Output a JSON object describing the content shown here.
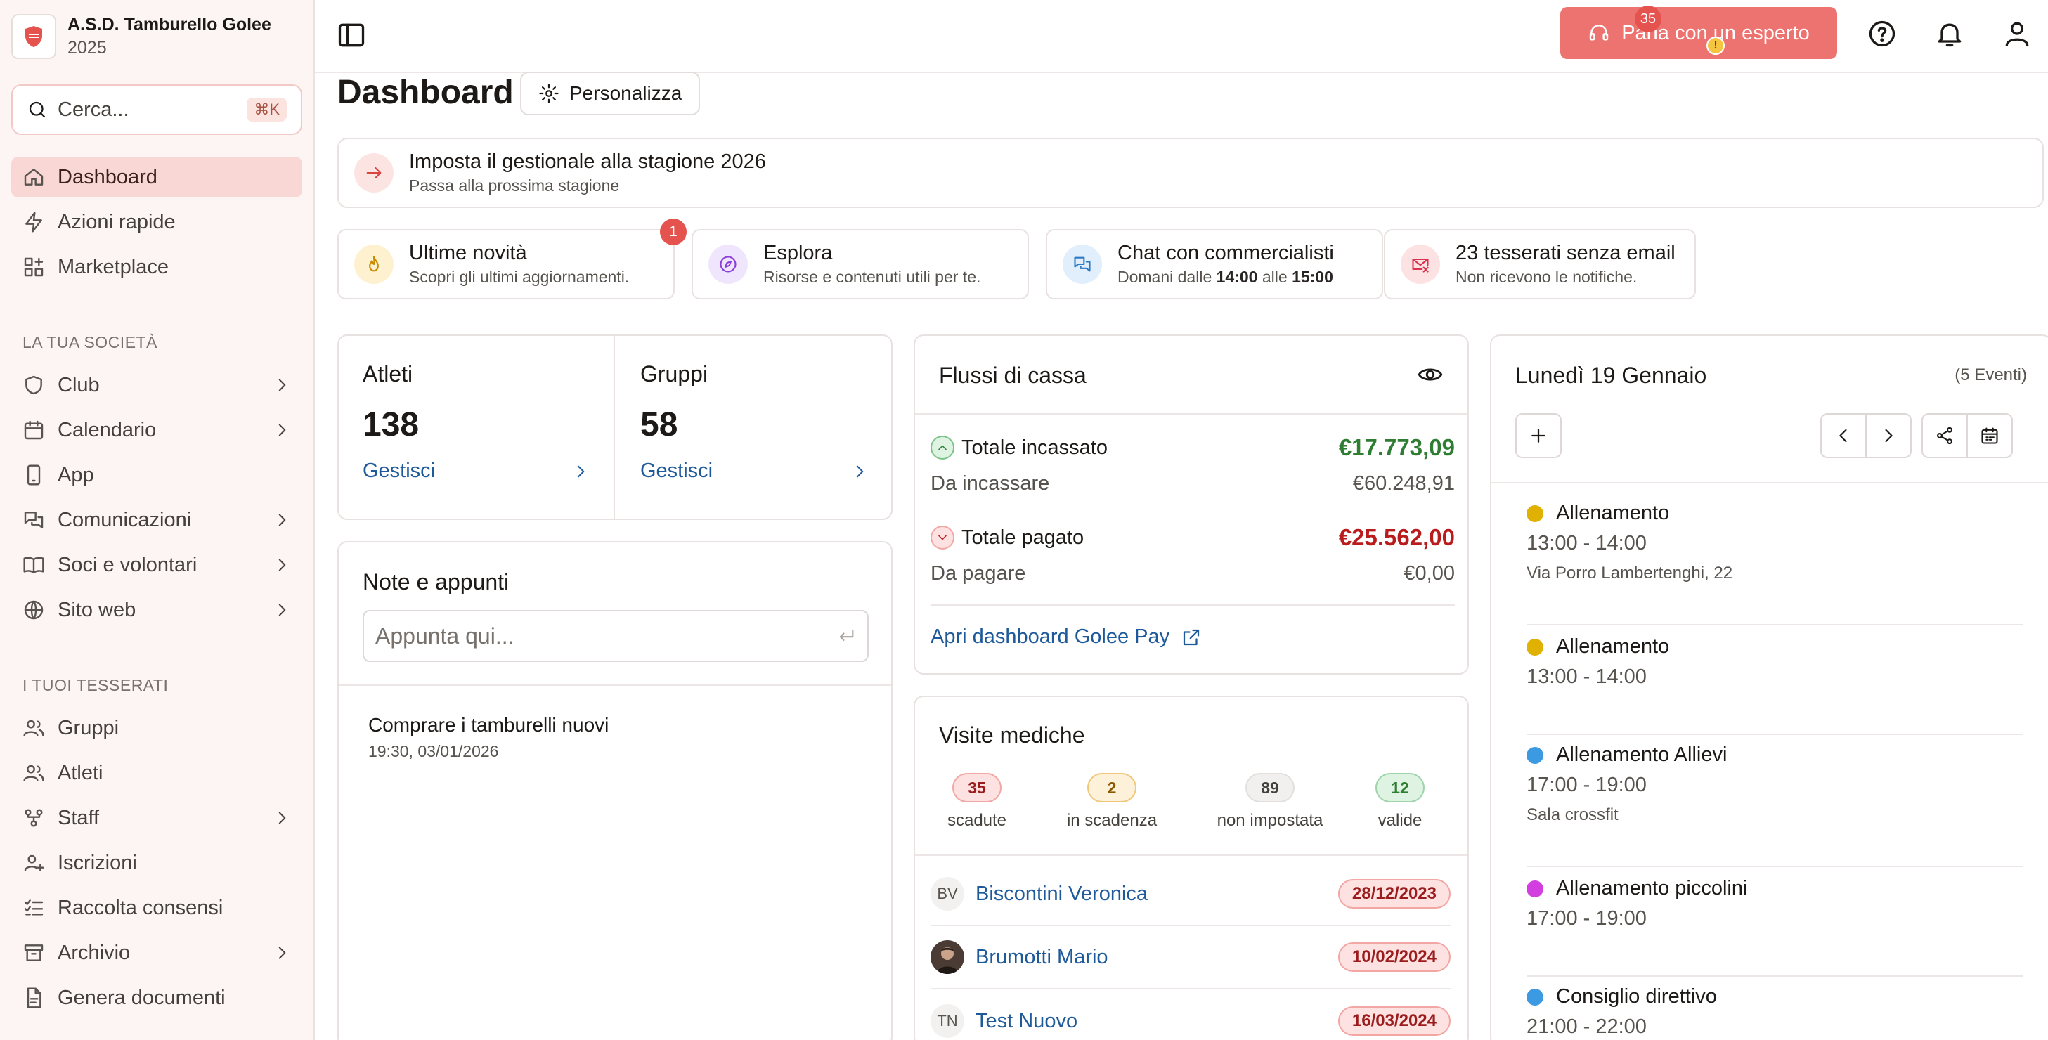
{
  "org": {
    "name": "A.S.D. Tamburello Golee",
    "year": "2025"
  },
  "search": {
    "placeholder": "Cerca...",
    "shortcut": "⌘K"
  },
  "nav": {
    "dashboard": "Dashboard",
    "quick_actions": "Azioni rapide",
    "marketplace": "Marketplace",
    "section_society": "LA TUA SOCIETÀ",
    "club": "Club",
    "calendar": "Calendario",
    "app": "App",
    "communications": "Comunicazioni",
    "members": "Soci e volontari",
    "website": "Sito web",
    "section_members": "I TUOI TESSERATI",
    "groups": "Gruppi",
    "athletes": "Atleti",
    "staff": "Staff",
    "registrations": "Iscrizioni",
    "consents": "Raccolta consensi",
    "archive": "Archivio",
    "documents": "Genera documenti"
  },
  "topbar": {
    "expert_label": "Parla con un esperto",
    "notifications_count": "35",
    "user_warning": "!"
  },
  "page": {
    "title": "Dashboard",
    "customize_label": "Personalizza"
  },
  "season_banner": {
    "title": "Imposta il gestionale alla stagione 2026",
    "subtitle": "Passa alla prossima stagione"
  },
  "quick_cards": {
    "news": {
      "title": "Ultime novità",
      "subtitle": "Scopri gli ultimi aggiornamenti.",
      "badge": "1"
    },
    "explore": {
      "title": "Esplora",
      "subtitle": "Risorse e contenuti utili per te."
    },
    "chat": {
      "title": "Chat con commercialisti",
      "subtitle_prefix": "Domani dalle ",
      "time_start": "14:00",
      "subtitle_mid": " alle ",
      "time_end": "15:00"
    },
    "no_email": {
      "title": "23 tesserati senza email",
      "subtitle": "Non ricevono le notifiche."
    }
  },
  "stats": {
    "athletes": {
      "label": "Atleti",
      "value": "138",
      "link": "Gestisci"
    },
    "groups": {
      "label": "Gruppi",
      "value": "58",
      "link": "Gestisci"
    }
  },
  "notes": {
    "title": "Note e appunti",
    "placeholder": "Appunta qui...",
    "items": [
      {
        "text": "Comprare i tamburelli nuovi",
        "time": "19:30, 03/01/2026"
      }
    ]
  },
  "cash": {
    "title": "Flussi di cassa",
    "total_in_label": "Totale incassato",
    "total_in_value": "€17.773,09",
    "to_collect_label": "Da incassare",
    "to_collect_value": "€60.248,91",
    "total_paid_label": "Totale pagato",
    "total_paid_value": "€25.562,00",
    "to_pay_label": "Da pagare",
    "to_pay_value": "€0,00",
    "link": "Apri dashboard Golee Pay"
  },
  "visits": {
    "title": "Visite mediche",
    "stats": [
      {
        "count": "35",
        "label": "scadute"
      },
      {
        "count": "2",
        "label": "in scadenza"
      },
      {
        "count": "89",
        "label": "non impostata"
      },
      {
        "count": "12",
        "label": "valide"
      }
    ],
    "rows": [
      {
        "initials": "BV",
        "name": "Biscontini Veronica",
        "date": "28/12/2023"
      },
      {
        "initials": "",
        "name": "Brumotti Mario",
        "date": "10/02/2024"
      },
      {
        "initials": "TN",
        "name": "Test Nuovo",
        "date": "16/03/2024"
      }
    ]
  },
  "calendar": {
    "title": "Lunedì 19 Gennaio",
    "count": "(5 Eventi)",
    "events": [
      {
        "title": "Allenamento",
        "time": "13:00 - 14:00",
        "location": "Via Porro Lambertenghi, 22",
        "color": "#e0b100"
      },
      {
        "title": "Allenamento",
        "time": "13:00 - 14:00",
        "location": "",
        "color": "#e0b100"
      },
      {
        "title": "Allenamento Allievi",
        "time": "17:00 - 19:00",
        "location": "Sala crossfit",
        "color": "#3b9ae1"
      },
      {
        "title": "Allenamento piccolini",
        "time": "17:00 - 19:00",
        "location": "",
        "color": "#d23ee0"
      },
      {
        "title": "Consiglio direttivo",
        "time": "21:00 - 22:00",
        "location": "",
        "color": "#3b9ae1"
      }
    ]
  },
  "colors": {
    "accent": "#ed7370",
    "link": "#1e5a9a",
    "positive": "#2e7d32",
    "negative": "#b91c1c"
  }
}
